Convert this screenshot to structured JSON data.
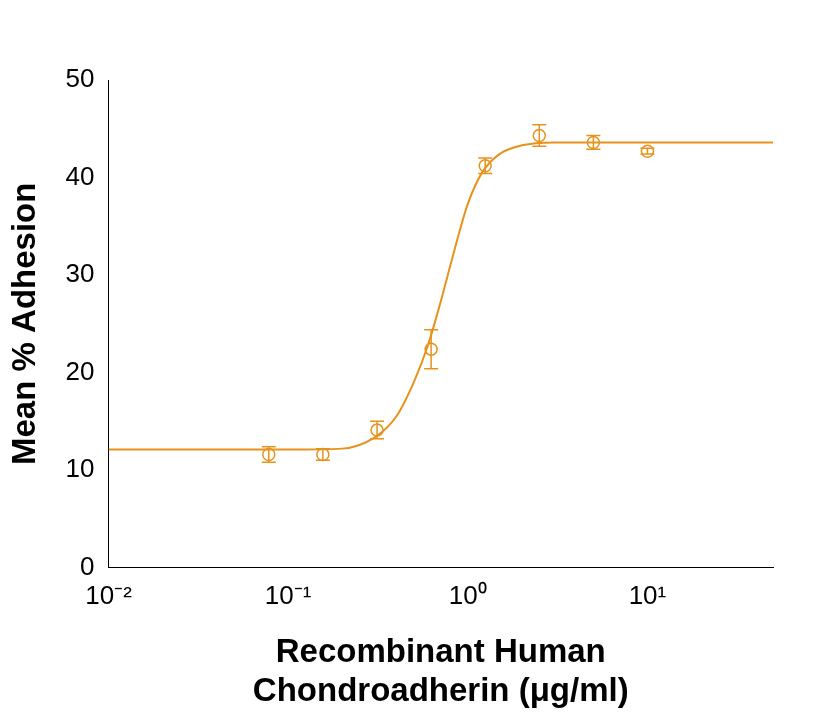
{
  "chart_data": {
    "type": "scatter",
    "x_label": [
      "Recombinant Human",
      "Chondroadherin (μg/ml)"
    ],
    "y_label": "Mean % Adhesion",
    "color": "#e8921c",
    "marker": "open_circle",
    "log": "x",
    "grid": false,
    "xlim": [
      0.01,
      50
    ],
    "ylim": [
      0,
      50
    ],
    "xticks": [
      {
        "value": 0.01,
        "label": "10⁻²"
      },
      {
        "value": 0.1,
        "label": "10⁻¹"
      },
      {
        "value": 1,
        "label": "10⁰"
      },
      {
        "value": 10,
        "label": "10¹"
      }
    ],
    "yticks": [
      0,
      10,
      20,
      30,
      40,
      50
    ],
    "x": [
      0.078,
      0.156,
      0.3125,
      0.625,
      1.25,
      2.5,
      5,
      10
    ],
    "values": [
      11.6,
      11.6,
      14.1,
      22.4,
      41.2,
      44.3,
      43.6,
      42.7
    ],
    "errors": [
      0.8,
      0.6,
      0.9,
      2.0,
      0.8,
      1.1,
      0.7,
      0.3
    ],
    "fit": {
      "line_style": "solid",
      "x": [
        0.01,
        0.1,
        0.2,
        0.3,
        0.4,
        0.5,
        0.6,
        0.7,
        0.8,
        0.9,
        1.0,
        1.2,
        1.5,
        2,
        3,
        10,
        50
      ],
      "values": [
        12.1,
        12.1,
        12.2,
        13.3,
        15.5,
        19.0,
        22.8,
        27.0,
        31.0,
        34.5,
        37.3,
        40.5,
        42.4,
        43.3,
        43.6,
        43.6,
        43.6
      ]
    }
  }
}
